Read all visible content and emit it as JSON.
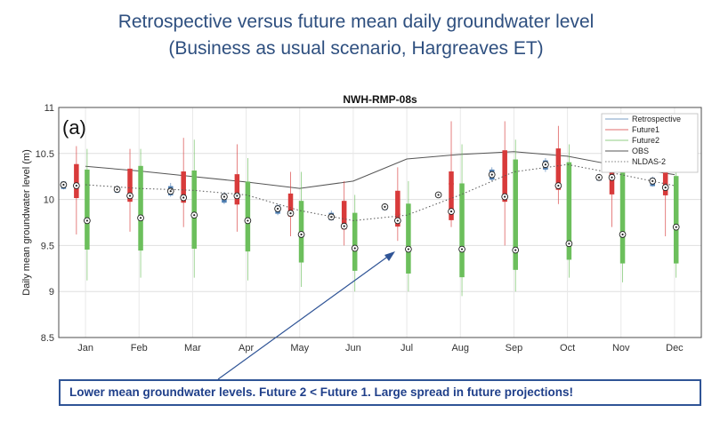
{
  "slide": {
    "title_line1": "Retrospective versus future mean daily groundwater level",
    "title_line2": "(Business as usual scenario, Hargreaves ET)",
    "callout": "Lower mean groundwater levels. Future 2 <  Future 1. Large spread in future projections!"
  },
  "colors": {
    "retrospective": "#4f7fb3",
    "future1": "#d83b3b",
    "future2": "#6cbf5c",
    "obs": "#555555",
    "nldas": "#555555",
    "title": "#2e4f7f",
    "callout": "#2f5496"
  },
  "chart_data": {
    "type": "box",
    "title": "NWH-RMP-08s",
    "panel_label": "(a)",
    "ylabel": "Daily mean groundwater level (m)",
    "xlabel": "",
    "ylim": [
      8.5,
      11
    ],
    "yticks": [
      "8.5",
      "9",
      "9.5",
      "10",
      "10.5",
      "11"
    ],
    "grid": true,
    "legend_position": "top-right",
    "legend": [
      "Retrospective",
      "Future1",
      "Future2",
      "OBS",
      "NLDAS-2"
    ],
    "categories": [
      "Jan",
      "Feb",
      "Mar",
      "Apr",
      "May",
      "Jun",
      "Jul",
      "Aug",
      "Sep",
      "Oct",
      "Nov",
      "Dec"
    ],
    "series": [
      {
        "name": "Retrospective",
        "type": "box",
        "boxes": [
          {
            "lo": 10.11,
            "q1": 10.12,
            "med": 10.16,
            "q3": 10.19,
            "hi": 10.2
          },
          {
            "lo": 10.07,
            "q1": 10.08,
            "med": 10.11,
            "q3": 10.13,
            "hi": 10.15
          },
          {
            "lo": 10.03,
            "q1": 10.05,
            "med": 10.09,
            "q3": 10.14,
            "hi": 10.18
          },
          {
            "lo": 9.95,
            "q1": 9.97,
            "med": 10.03,
            "q3": 10.06,
            "hi": 10.08
          },
          {
            "lo": 9.83,
            "q1": 9.85,
            "med": 9.9,
            "q3": 9.93,
            "hi": 9.95
          },
          {
            "lo": 9.77,
            "q1": 9.78,
            "med": 9.81,
            "q3": 9.85,
            "hi": 9.88
          },
          {
            "lo": 9.88,
            "q1": 9.89,
            "med": 9.92,
            "q3": 9.94,
            "hi": 9.95
          },
          {
            "lo": 10.02,
            "q1": 10.03,
            "med": 10.05,
            "q3": 10.07,
            "hi": 10.08
          },
          {
            "lo": 10.2,
            "q1": 10.22,
            "med": 10.27,
            "q3": 10.32,
            "hi": 10.35
          },
          {
            "lo": 10.3,
            "q1": 10.33,
            "med": 10.38,
            "q3": 10.42,
            "hi": 10.45
          },
          {
            "lo": 10.2,
            "q1": 10.21,
            "med": 10.24,
            "q3": 10.26,
            "hi": 10.28
          },
          {
            "lo": 10.14,
            "q1": 10.15,
            "med": 10.2,
            "q3": 10.23,
            "hi": 10.25
          }
        ]
      },
      {
        "name": "Future1",
        "type": "box",
        "boxes": [
          {
            "lo": 9.62,
            "q1": 10.02,
            "med": 10.15,
            "q3": 10.38,
            "hi": 10.58
          },
          {
            "lo": 9.65,
            "q1": 9.98,
            "med": 10.04,
            "q3": 10.33,
            "hi": 10.55
          },
          {
            "lo": 9.7,
            "q1": 9.97,
            "med": 10.02,
            "q3": 10.3,
            "hi": 10.67
          },
          {
            "lo": 9.65,
            "q1": 9.95,
            "med": 10.04,
            "q3": 10.27,
            "hi": 10.6
          },
          {
            "lo": 9.6,
            "q1": 9.82,
            "med": 9.85,
            "q3": 10.06,
            "hi": 10.3
          },
          {
            "lo": 9.5,
            "q1": 9.68,
            "med": 9.71,
            "q3": 9.98,
            "hi": 10.2
          },
          {
            "lo": 9.55,
            "q1": 9.71,
            "med": 9.77,
            "q3": 10.09,
            "hi": 10.35
          },
          {
            "lo": 9.7,
            "q1": 9.78,
            "med": 9.87,
            "q3": 10.3,
            "hi": 10.85
          },
          {
            "lo": 9.5,
            "q1": 9.98,
            "med": 10.03,
            "q3": 10.53,
            "hi": 10.85
          },
          {
            "lo": 9.95,
            "q1": 10.11,
            "med": 10.15,
            "q3": 10.55,
            "hi": 10.8
          },
          {
            "lo": 9.7,
            "q1": 10.06,
            "med": 10.24,
            "q3": 10.34,
            "hi": 10.5
          },
          {
            "lo": 9.6,
            "q1": 10.05,
            "med": 10.13,
            "q3": 10.3,
            "hi": 10.45
          }
        ]
      },
      {
        "name": "Future2",
        "type": "box",
        "boxes": [
          {
            "lo": 9.12,
            "q1": 9.46,
            "med": 9.77,
            "q3": 10.32,
            "hi": 10.55
          },
          {
            "lo": 9.15,
            "q1": 9.45,
            "med": 9.8,
            "q3": 10.36,
            "hi": 10.55
          },
          {
            "lo": 9.15,
            "q1": 9.47,
            "med": 9.83,
            "q3": 10.31,
            "hi": 10.65
          },
          {
            "lo": 9.12,
            "q1": 9.44,
            "med": 9.77,
            "q3": 10.19,
            "hi": 10.45
          },
          {
            "lo": 9.05,
            "q1": 9.32,
            "med": 9.62,
            "q3": 9.98,
            "hi": 10.3
          },
          {
            "lo": 9.0,
            "q1": 9.23,
            "med": 9.47,
            "q3": 9.85,
            "hi": 10.05
          },
          {
            "lo": 9.0,
            "q1": 9.2,
            "med": 9.46,
            "q3": 9.95,
            "hi": 10.2
          },
          {
            "lo": 8.95,
            "q1": 9.16,
            "med": 9.46,
            "q3": 10.17,
            "hi": 10.6
          },
          {
            "lo": 9.0,
            "q1": 9.24,
            "med": 9.45,
            "q3": 10.43,
            "hi": 10.65
          },
          {
            "lo": 9.15,
            "q1": 9.35,
            "med": 9.52,
            "q3": 10.4,
            "hi": 10.6
          },
          {
            "lo": 9.1,
            "q1": 9.31,
            "med": 9.62,
            "q3": 10.29,
            "hi": 10.5
          },
          {
            "lo": 9.15,
            "q1": 9.31,
            "med": 9.7,
            "q3": 10.25,
            "hi": 10.4
          }
        ]
      },
      {
        "name": "OBS",
        "type": "line",
        "values": [
          10.36,
          10.31,
          10.25,
          10.19,
          10.12,
          10.2,
          10.44,
          10.49,
          10.52,
          10.47,
          10.36,
          10.27
        ]
      },
      {
        "name": "NLDAS-2",
        "type": "line",
        "values": [
          10.16,
          10.12,
          10.1,
          10.05,
          9.88,
          9.77,
          9.83,
          10.05,
          10.3,
          10.38,
          10.27,
          10.15
        ]
      }
    ],
    "outliers": [
      {
        "series": "Future1",
        "category": "Jul",
        "y": 9.84
      },
      {
        "series": "Future1",
        "category": "Aug",
        "y": 10.17
      }
    ]
  }
}
